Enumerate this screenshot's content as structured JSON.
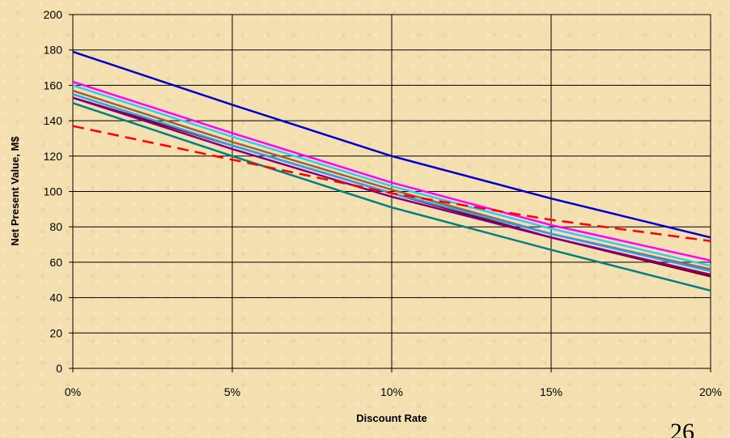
{
  "chart_data": {
    "type": "line",
    "title": "",
    "xlabel": "Discount Rate",
    "ylabel": "Net Present Value, M$",
    "xlim": [
      0,
      0.2
    ],
    "ylim": [
      0,
      200
    ],
    "x_ticks": [
      0,
      0.05,
      0.1,
      0.15,
      0.2
    ],
    "x_tick_labels": [
      "0%",
      "5%",
      "10%",
      "15%",
      "20%"
    ],
    "y_ticks": [
      0,
      20,
      40,
      60,
      80,
      100,
      120,
      140,
      160,
      180,
      200
    ],
    "y_tick_labels": [
      "0",
      "20",
      "40",
      "60",
      "80",
      "100",
      "120",
      "140",
      "160",
      "180",
      "200"
    ],
    "grid": true,
    "x": [
      0,
      0.05,
      0.1,
      0.15,
      0.2
    ],
    "series": [
      {
        "color": "#0000cc",
        "dash": false,
        "values": [
          179,
          149,
          120,
          96,
          74
        ]
      },
      {
        "color": "#ff00ff",
        "dash": false,
        "values": [
          162,
          133,
          105,
          81,
          61
        ]
      },
      {
        "color": "#33ccee",
        "dash": false,
        "values": [
          160,
          131,
          103,
          79,
          58
        ]
      },
      {
        "color": "#996633",
        "dash": false,
        "values": [
          157,
          128,
          101,
          76,
          56
        ]
      },
      {
        "color": "#800000",
        "dash": false,
        "values": [
          153,
          126,
          99,
          74,
          52
        ]
      },
      {
        "color": "#800080",
        "dash": false,
        "values": [
          153,
          124,
          97,
          74,
          53
        ]
      },
      {
        "color": "#3399ff",
        "dash": false,
        "values": [
          155,
          126,
          99,
          76,
          55
        ]
      },
      {
        "color": "#008080",
        "dash": false,
        "values": [
          150,
          120,
          91,
          67,
          44
        ]
      },
      {
        "color": "#ff0000",
        "dash": true,
        "values": [
          137,
          118,
          99,
          84,
          72
        ]
      }
    ]
  },
  "page_number": "26"
}
